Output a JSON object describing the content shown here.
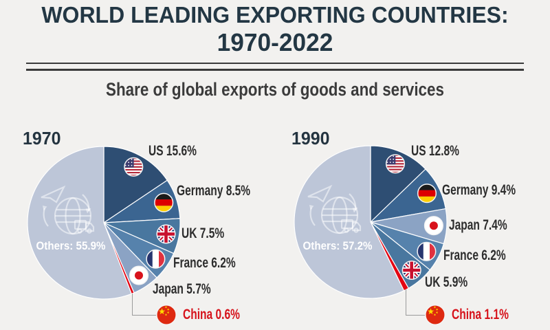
{
  "page": {
    "title_line1": "WORLD LEADING EXPORTING COUNTRIES:",
    "title_line2": "1970-2022",
    "subtitle": "Share of global exports of goods and services",
    "background": "#F2F1EF",
    "colors": {
      "title": "#233744",
      "subtitle": "#3B3B3B",
      "label": "#2D2D2D",
      "china_label": "#D6121B",
      "separator": "#3A3A3A",
      "others_text": "#FFFFFF",
      "connector": "#9A9A9A"
    }
  },
  "chart_data": [
    {
      "type": "pie",
      "year": "1970",
      "layout": "slices start at 12 o'clock, clockwise; legend labels placed around right side",
      "slices": [
        {
          "label": "US",
          "value": 15.6,
          "display": "US 15.6%",
          "color": "#2E4E73",
          "flag": "us"
        },
        {
          "label": "Germany",
          "value": 8.5,
          "display": "Germany 8.5%",
          "color": "#3B6591",
          "flag": "de"
        },
        {
          "label": "UK",
          "value": 7.5,
          "display": "UK 7.5%",
          "color": "#49779F",
          "flag": "uk"
        },
        {
          "label": "France",
          "value": 6.2,
          "display": "France 6.2%",
          "color": "#5682AC",
          "flag": "fr"
        },
        {
          "label": "Japan",
          "value": 5.7,
          "display": "Japan 5.7%",
          "color": "#8BA3C4",
          "flag": "jp"
        },
        {
          "label": "China",
          "value": 0.6,
          "display": "China 0.6%",
          "color": "#E30613",
          "flag": "cn",
          "highlight": true
        },
        {
          "label": "Others",
          "value": 55.9,
          "display": "Others: 55.9%",
          "color": "#BDC6D8"
        }
      ]
    },
    {
      "type": "pie",
      "year": "1990",
      "layout": "slices start at 12 o'clock, clockwise; legend labels placed around right side",
      "slices": [
        {
          "label": "US",
          "value": 12.8,
          "display": "US 12.8%",
          "color": "#2E4E73",
          "flag": "us"
        },
        {
          "label": "Germany",
          "value": 9.4,
          "display": "Germany 9.4%",
          "color": "#3B6591",
          "flag": "de"
        },
        {
          "label": "Japan",
          "value": 7.4,
          "display": "Japan 7.4%",
          "color": "#8BA3C4",
          "flag": "jp"
        },
        {
          "label": "France",
          "value": 6.2,
          "display": "France 6.2%",
          "color": "#5682AC",
          "flag": "fr"
        },
        {
          "label": "UK",
          "value": 5.9,
          "display": "UK 5.9%",
          "color": "#49779F",
          "flag": "uk"
        },
        {
          "label": "China",
          "value": 1.1,
          "display": "China 1.1%",
          "color": "#E30613",
          "flag": "cn",
          "highlight": true
        },
        {
          "label": "Others",
          "value": 57.2,
          "display": "Others: 57.2%",
          "color": "#BDC6D8"
        }
      ]
    }
  ]
}
